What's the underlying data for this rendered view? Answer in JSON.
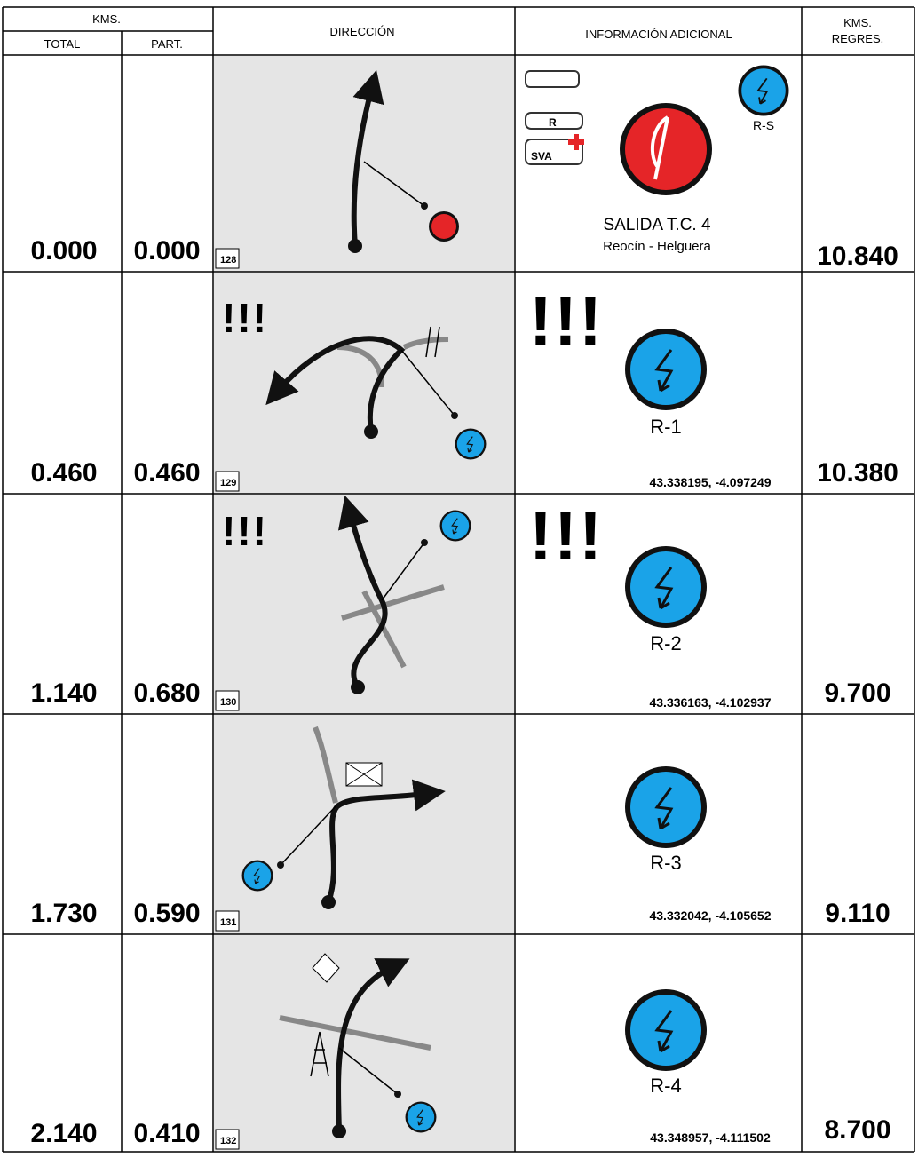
{
  "header": {
    "kms": "KMS.",
    "total": "TOTAL",
    "part": "PART.",
    "direccion": "DIRECCIÓN",
    "info": "INFORMACIÓN ADICIONAL",
    "regres_1": "KMS.",
    "regres_2": "REGRES."
  },
  "rows": [
    {
      "total": "0.000",
      "part": "0.000",
      "box": "128",
      "icon_r": "R",
      "icon_sva": "SVA",
      "small_label": "R-S",
      "title": "SALIDA T.C. 4",
      "subtitle": "Reocín - Helguera",
      "regres": "10.840"
    },
    {
      "total": "0.460",
      "part": "0.460",
      "box": "129",
      "dir_warn": "!!!",
      "info_warn": "!!!",
      "label": "R-1",
      "coords": "43.338195, -4.097249",
      "regres": "10.380"
    },
    {
      "total": "1.140",
      "part": "0.680",
      "box": "130",
      "dir_warn": "!!!",
      "info_warn": "!!!",
      "label": "R-2",
      "coords": "43.336163, -4.102937",
      "regres": "9.700"
    },
    {
      "total": "1.730",
      "part": "0.590",
      "box": "131",
      "label": "R-3",
      "coords": "43.332042, -4.105652",
      "regres": "9.110"
    },
    {
      "total": "2.140",
      "part": "0.410",
      "box": "132",
      "label": "R-4",
      "coords": "43.348957, -4.111502",
      "regres": "8.700"
    }
  ]
}
